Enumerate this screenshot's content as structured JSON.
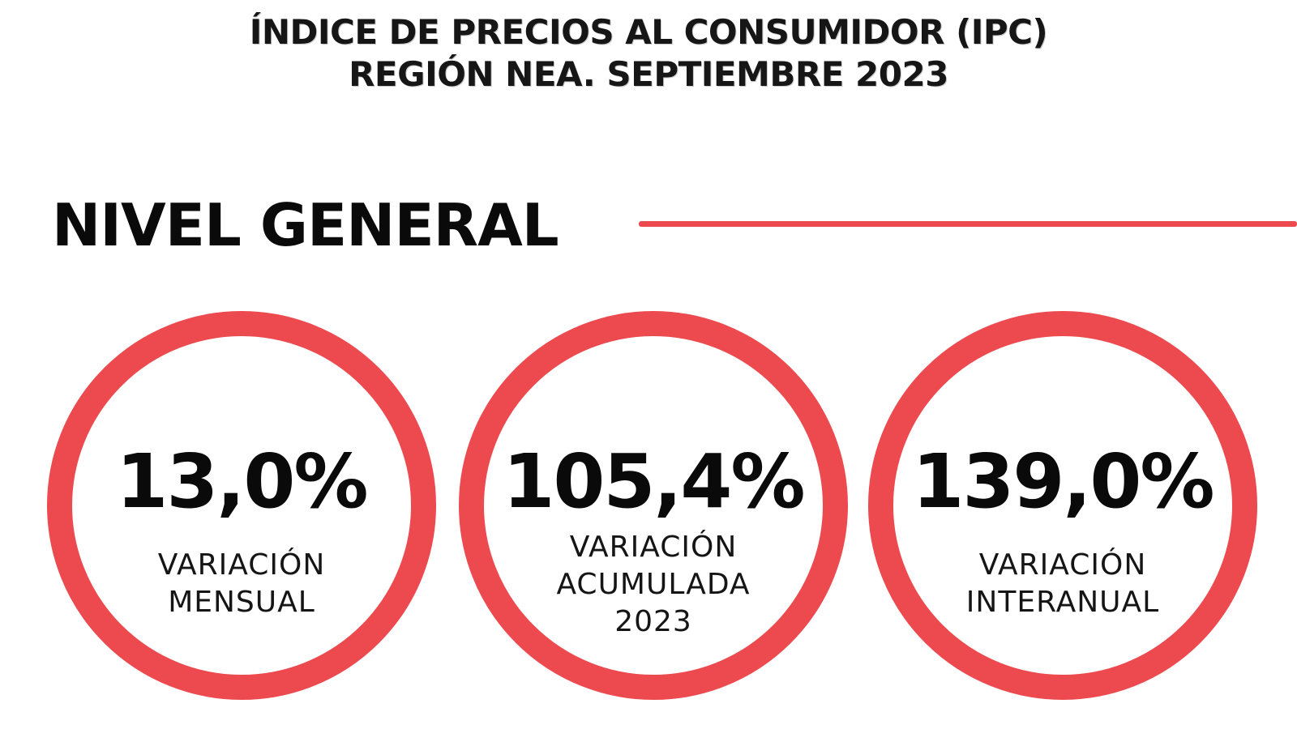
{
  "header": {
    "line1": "ÍNDICE DE PRECIOS AL CONSUMIDOR (IPC)",
    "line2": "REGIÓN NEA. SEPTIEMBRE 2023"
  },
  "section": {
    "title": "NIVEL GENERAL"
  },
  "indicators": [
    {
      "value": "13,0%",
      "label_lines": [
        "VARIACIÓN",
        "MENSUAL"
      ]
    },
    {
      "value": "105,4%",
      "label_lines": [
        "VARIACIÓN",
        "ACUMULADA",
        "2023"
      ]
    },
    {
      "value": "139,0%",
      "label_lines": [
        "VARIACIÓN",
        "INTERANUAL"
      ]
    }
  ],
  "colors": {
    "accent": "#ec4a4f",
    "text": "#0a0a0a",
    "background": "#ffffff"
  }
}
